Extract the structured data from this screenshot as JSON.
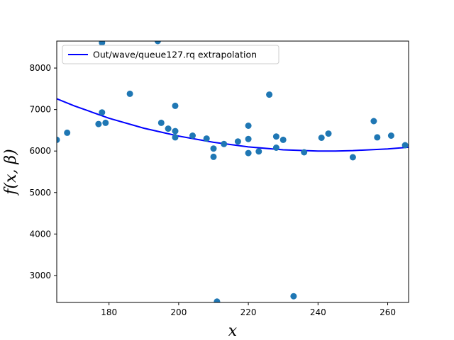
{
  "chart_data": {
    "type": "scatter",
    "xlabel": "x",
    "ylabel": "f(x, β)",
    "xlim": [
      165,
      266
    ],
    "ylim": [
      2350,
      8650
    ],
    "x_ticks": [
      180,
      200,
      220,
      240,
      260
    ],
    "y_ticks": [
      3000,
      4000,
      5000,
      6000,
      7000,
      8000
    ],
    "grid": false,
    "legend": {
      "placement": "top-left",
      "entries": [
        "Out/wave/queue127.rq extrapolation"
      ]
    },
    "colors": {
      "points": "#1f77b4",
      "fit_line": "#0000ff"
    },
    "series": [
      {
        "type": "scatter",
        "points": [
          [
            165,
            6270
          ],
          [
            168,
            6440
          ],
          [
            177,
            6650
          ],
          [
            178,
            6930
          ],
          [
            178,
            8610
          ],
          [
            179,
            6680
          ],
          [
            186,
            7380
          ],
          [
            194,
            8650
          ],
          [
            195,
            6680
          ],
          [
            197,
            6540
          ],
          [
            199,
            7090
          ],
          [
            199,
            6480
          ],
          [
            199,
            6330
          ],
          [
            204,
            6370
          ],
          [
            208,
            6300
          ],
          [
            210,
            6060
          ],
          [
            210,
            5860
          ],
          [
            211,
            2370
          ],
          [
            213,
            6170
          ],
          [
            217,
            6230
          ],
          [
            220,
            6610
          ],
          [
            220,
            6290
          ],
          [
            220,
            5950
          ],
          [
            223,
            5990
          ],
          [
            226,
            7360
          ],
          [
            228,
            6350
          ],
          [
            228,
            6080
          ],
          [
            230,
            6270
          ],
          [
            233,
            2500
          ],
          [
            236,
            5970
          ],
          [
            241,
            6320
          ],
          [
            243,
            6420
          ],
          [
            250,
            5850
          ],
          [
            256,
            6720
          ],
          [
            257,
            6330
          ],
          [
            261,
            6370
          ],
          [
            265,
            6140
          ]
        ]
      },
      {
        "name": "Out/wave/queue127.rq extrapolation",
        "type": "line",
        "points": [
          [
            165,
            7260
          ],
          [
            170,
            7090
          ],
          [
            180,
            6790
          ],
          [
            190,
            6550
          ],
          [
            200,
            6360
          ],
          [
            210,
            6210
          ],
          [
            220,
            6100
          ],
          [
            230,
            6030
          ],
          [
            240,
            6000
          ],
          [
            245,
            6000
          ],
          [
            250,
            6010
          ],
          [
            260,
            6050
          ],
          [
            266,
            6090
          ]
        ]
      }
    ]
  }
}
